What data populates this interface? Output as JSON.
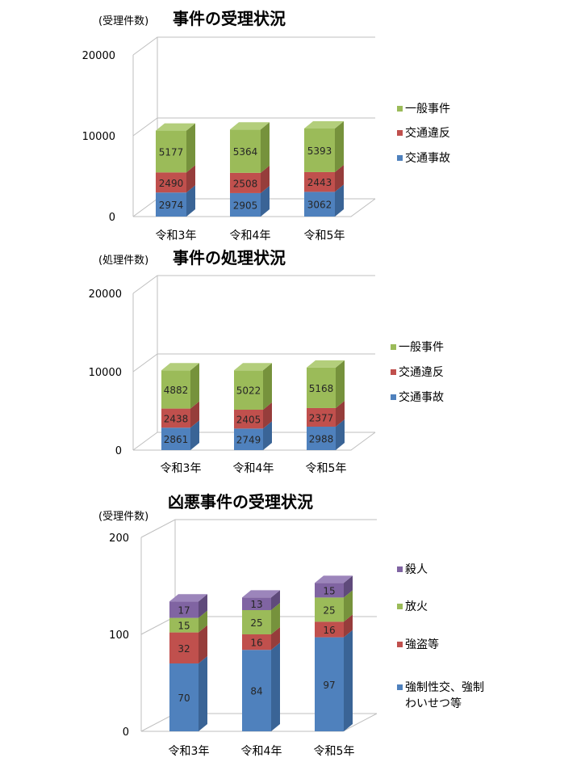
{
  "colors": {
    "blue": "#4f81bd",
    "blue_side": "#3a6496",
    "blue_top": "#6f9bd3",
    "red": "#c0504d",
    "red_side": "#963d3b",
    "red_top": "#d8716e",
    "green": "#9bbb59",
    "green_side": "#76923c",
    "green_top": "#b3ce7b",
    "purple": "#8064a2",
    "purple_side": "#5f4a7b",
    "purple_top": "#9c85bb",
    "grid": "#bfbfbf",
    "text": "#000000",
    "label": "#262626"
  },
  "chart_data": [
    {
      "type": "bar",
      "title": "事件の受理状況",
      "unit_label": "(受理件数)",
      "categories": [
        "令和3年",
        "令和4年",
        "令和5年"
      ],
      "yticks": [
        "0",
        "10000",
        "20000"
      ],
      "ylim": [
        0,
        20000
      ],
      "legend_placement": "right",
      "series": [
        {
          "name": "交通事故",
          "color": "blue",
          "values": [
            2974,
            2905,
            3062
          ]
        },
        {
          "name": "交通違反",
          "color": "red",
          "values": [
            2490,
            2508,
            2443
          ]
        },
        {
          "name": "一般事件",
          "color": "green",
          "values": [
            5177,
            5364,
            5393
          ]
        }
      ]
    },
    {
      "type": "bar",
      "title": "事件の処理状況",
      "unit_label": "(処理件数)",
      "categories": [
        "令和3年",
        "令和4年",
        "令和5年"
      ],
      "yticks": [
        "0",
        "10000",
        "20000"
      ],
      "ylim": [
        0,
        20000
      ],
      "legend_placement": "right",
      "series": [
        {
          "name": "交通事故",
          "color": "blue",
          "values": [
            2861,
            2749,
            2988
          ]
        },
        {
          "name": "交通違反",
          "color": "red",
          "values": [
            2438,
            2405,
            2377
          ]
        },
        {
          "name": "一般事件",
          "color": "green",
          "values": [
            4882,
            5022,
            5168
          ]
        }
      ]
    },
    {
      "type": "bar",
      "title": "凶悪事件の受理状況",
      "unit_label": "(受理件数)",
      "categories": [
        "令和3年",
        "令和4年",
        "令和5年"
      ],
      "yticks": [
        "0",
        "100",
        "200"
      ],
      "ylim": [
        0,
        200
      ],
      "legend_placement": "right",
      "series": [
        {
          "name": "強制性交、強制わいせつ等",
          "legend_lines": [
            "強制性交、強制",
            "わいせつ等"
          ],
          "color": "blue",
          "values": [
            70,
            84,
            97
          ]
        },
        {
          "name": "強盗等",
          "color": "red",
          "values": [
            32,
            16,
            16
          ]
        },
        {
          "name": "放火",
          "color": "green",
          "values": [
            15,
            25,
            25
          ]
        },
        {
          "name": "殺人",
          "color": "purple",
          "values": [
            17,
            13,
            15
          ]
        }
      ]
    }
  ]
}
